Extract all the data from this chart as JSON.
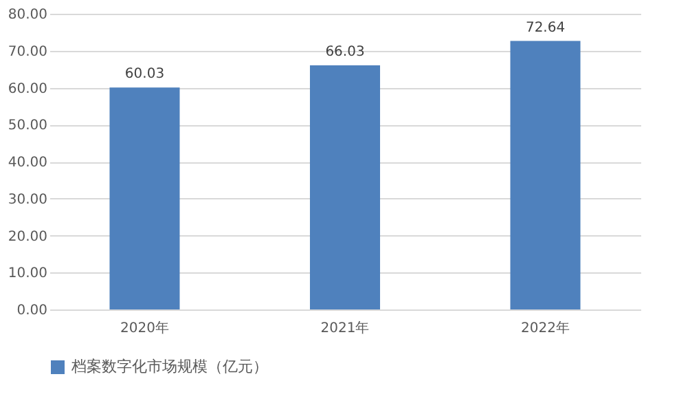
{
  "chart_data": {
    "type": "bar",
    "categories": [
      "2020年",
      "2021年",
      "2022年"
    ],
    "series": [
      {
        "name": "档案数字化市场规模（亿元）",
        "color": "#4f81bd",
        "values": [
          60.03,
          66.03,
          72.64
        ]
      }
    ],
    "ylim": [
      0,
      80
    ],
    "yticks": [
      {
        "value": 0,
        "label": "0.00"
      },
      {
        "value": 10,
        "label": "10.00"
      },
      {
        "value": 20,
        "label": "20.00"
      },
      {
        "value": 30,
        "label": "30.00"
      },
      {
        "value": 40,
        "label": "40.00"
      },
      {
        "value": 50,
        "label": "50.00"
      },
      {
        "value": 60,
        "label": "60.00"
      },
      {
        "value": 70,
        "label": "70.00"
      },
      {
        "value": 80,
        "label": "80.00"
      }
    ],
    "grid": "y",
    "legend": "bottom",
    "data_labels": true
  }
}
